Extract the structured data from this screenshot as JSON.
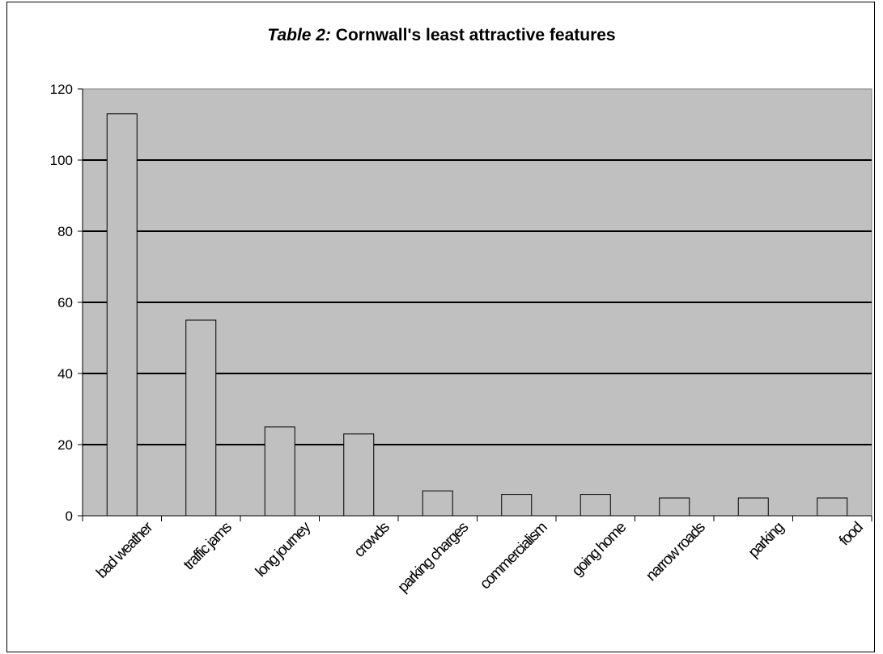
{
  "chart_data": {
    "type": "bar",
    "title_lead": "Table 2:",
    "title_rest": " Cornwall's least attractive features",
    "xlabel": "",
    "ylabel": "",
    "categories": [
      "bad weather",
      "traffic jams",
      "long journey",
      "crowds",
      "parking charges",
      "commercialism",
      "going home",
      "narrow roads",
      "parking",
      "food"
    ],
    "values": [
      113,
      55,
      25,
      23,
      7,
      6,
      6,
      5,
      5,
      5
    ],
    "ylim": [
      0,
      120
    ],
    "yticks": [
      "0",
      "20",
      "40",
      "60",
      "80",
      "100",
      "120"
    ],
    "grid": true,
    "legend": "none",
    "colors": {
      "plot_bg": "#c0c0c0",
      "bar": "#c0c0c0",
      "bar_edge": "#000000",
      "grid": "#000000"
    }
  }
}
